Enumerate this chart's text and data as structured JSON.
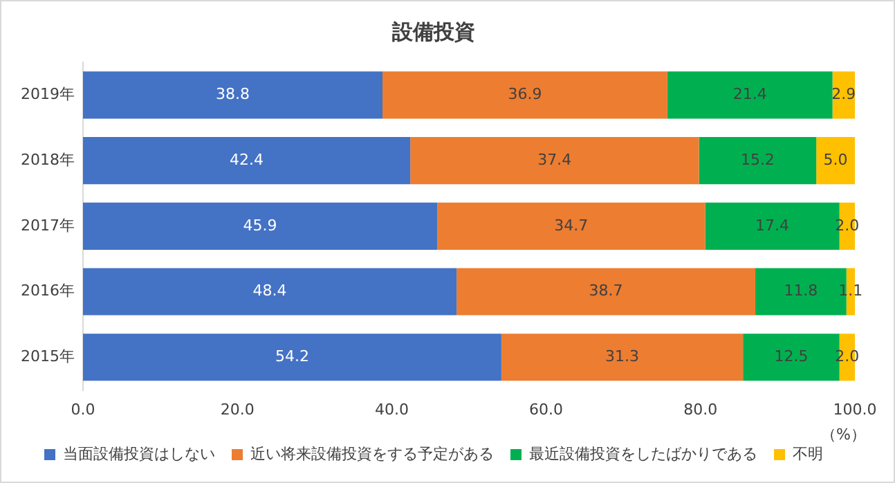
{
  "chart_data": {
    "type": "bar",
    "title": "設備投資",
    "orientation": "horizontal",
    "stacked": true,
    "categories": [
      "2019年",
      "2018年",
      "2017年",
      "2016年",
      "2015年"
    ],
    "series": [
      {
        "name": "当面設備投資はしない",
        "color": "#4472c4",
        "values": [
          38.8,
          42.4,
          45.9,
          48.4,
          54.2
        ],
        "value_labels": [
          "38.8",
          "42.4",
          "45.9",
          "48.4",
          "54.2"
        ]
      },
      {
        "name": "近い将来設備投資をする予定がある",
        "color": "#ed7d31",
        "values": [
          36.9,
          37.4,
          34.7,
          38.7,
          31.3
        ],
        "value_labels": [
          "36.9",
          "37.4",
          "34.7",
          "38.7",
          "31.3"
        ]
      },
      {
        "name": "最近設備投資をしたばかりである",
        "color": "#00b050",
        "values": [
          21.4,
          15.2,
          17.4,
          11.8,
          12.5
        ],
        "value_labels": [
          "21.4",
          "15.2",
          "17.4",
          "11.8",
          "12.5"
        ]
      },
      {
        "name": "不明",
        "color": "#ffc000",
        "values": [
          2.9,
          5.0,
          2.0,
          1.1,
          2.0
        ],
        "value_labels": [
          "2.9",
          "5.0",
          "2.0",
          "1.1",
          "2.0"
        ]
      }
    ],
    "xlim": [
      0,
      100
    ],
    "xticks": [
      {
        "value": 0,
        "label": "0.0"
      },
      {
        "value": 20,
        "label": "20.0"
      },
      {
        "value": 40,
        "label": "40.0"
      },
      {
        "value": 60,
        "label": "60.0"
      },
      {
        "value": 80,
        "label": "80.0"
      },
      {
        "value": 100,
        "label": "100.0"
      }
    ],
    "annotations": [
      "（%）"
    ],
    "grid": false,
    "legend": "bottom"
  }
}
